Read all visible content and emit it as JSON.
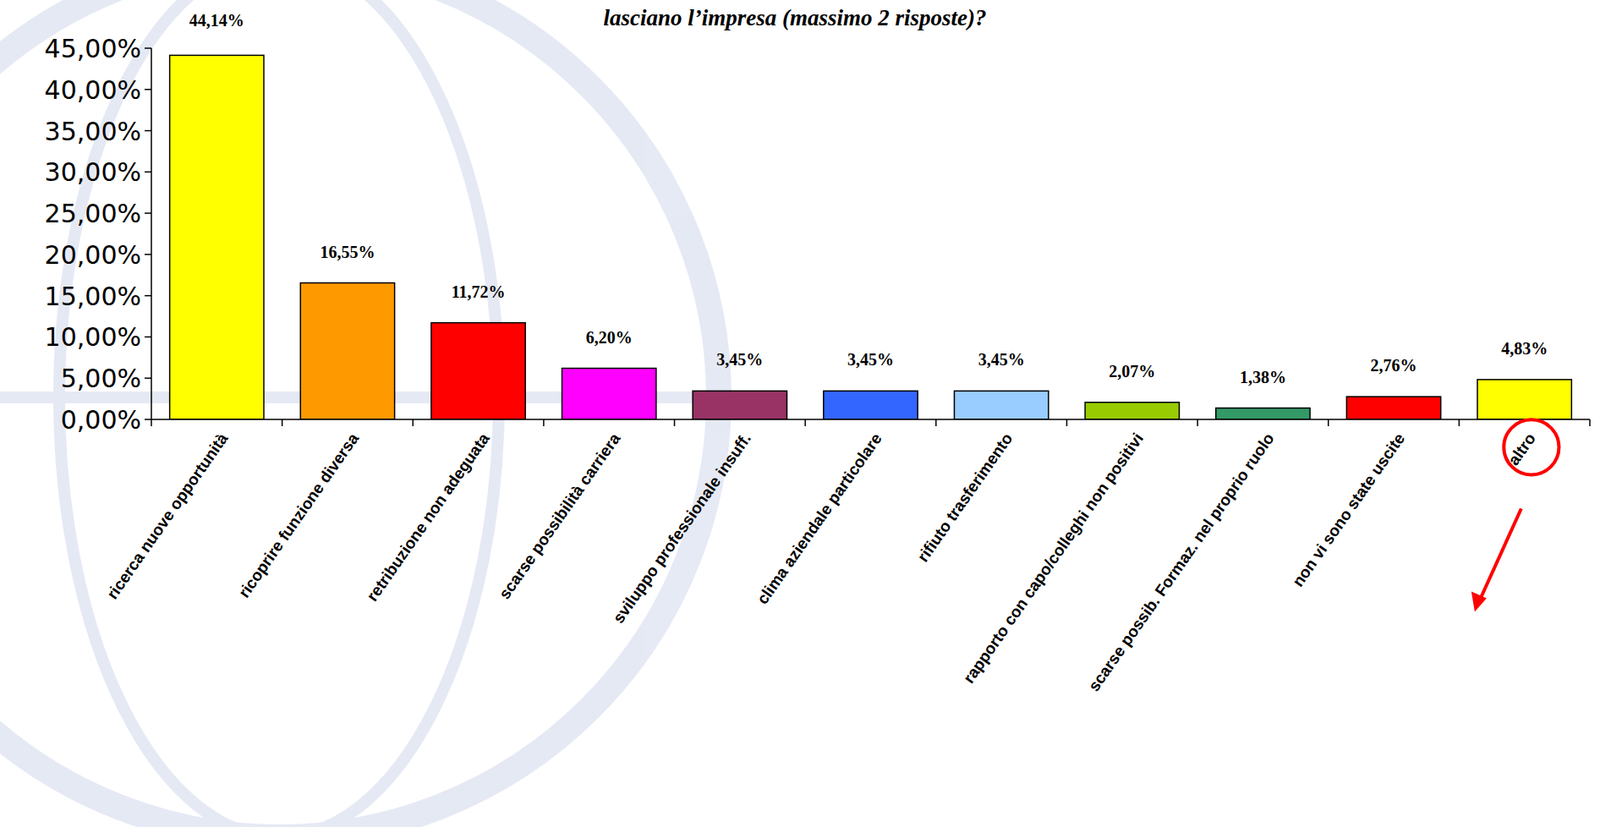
{
  "chart_data": {
    "type": "bar",
    "title": "lasciano l’impresa (massimo 2 risposte)?",
    "categories": [
      "ricerca nuove opportunità",
      "ricoprire funzione diversa",
      "retribuzione non adeguata",
      "scarse possibilità carriera",
      "sviluppo professionale insuff.",
      "clima aziendale particolare",
      "rifiuto trasferimento",
      "rapporto con capo/colleghi non positivi",
      "scarse possib. Formaz. nel proprio ruolo",
      "non vi sono state uscite",
      "altro"
    ],
    "values": [
      44.14,
      16.55,
      11.72,
      6.2,
      3.45,
      3.45,
      3.45,
      2.07,
      1.38,
      2.76,
      4.83
    ],
    "value_labels": [
      "44,14%",
      "16,55%",
      "11,72%",
      "6,20%",
      "3,45%",
      "3,45%",
      "3,45%",
      "2,07%",
      "1,38%",
      "2,76%",
      "4,83%"
    ],
    "colors": [
      "#ffff00",
      "#ff9900",
      "#ff0000",
      "#ff00ff",
      "#993366",
      "#3366ff",
      "#99ccff",
      "#99cc00",
      "#339966",
      "#ff0000",
      "#ffff00"
    ],
    "data_labels": true,
    "ylim": [
      0,
      45
    ],
    "yticks": [
      {
        "value": 0,
        "label": "0,00%"
      },
      {
        "value": 5,
        "label": "5,00%"
      },
      {
        "value": 10,
        "label": "10,00%"
      },
      {
        "value": 15,
        "label": "15,00%"
      },
      {
        "value": 20,
        "label": "20,00%"
      },
      {
        "value": 25,
        "label": "25,00%"
      },
      {
        "value": 30,
        "label": "30,00%"
      },
      {
        "value": 35,
        "label": "35,00%"
      },
      {
        "value": 40,
        "label": "40,00%"
      },
      {
        "value": 45,
        "label": "45,00%"
      }
    ],
    "grid": false
  }
}
